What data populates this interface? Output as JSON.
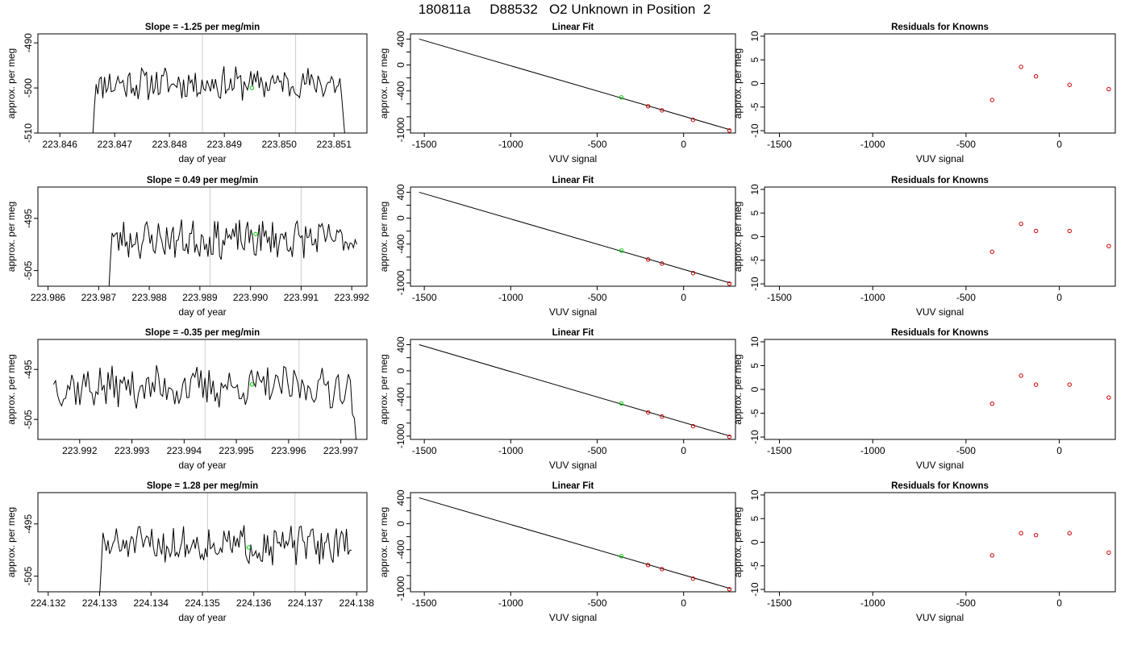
{
  "figure": {
    "title": "180811a     D88532   O2 Unknown in Position  2"
  },
  "colors": {
    "trace": "#000000",
    "marker_known": "#cc0000",
    "marker_unknown": "#00cc00",
    "vline": "#cccccc",
    "frame": "#000000"
  },
  "chart_data": [
    {
      "type": "line",
      "title": "Slope =  -1.25  per meg/min",
      "xlabel": "day of year",
      "ylabel": "approx. per meg",
      "xlim": [
        223.8456,
        223.8516
      ],
      "ylim": [
        -510,
        -488
      ],
      "xticks": [
        "223.846",
        "223.847",
        "223.848",
        "223.849",
        "223.850",
        "223.851"
      ],
      "xtick_values": [
        223.846,
        223.847,
        223.848,
        223.849,
        223.85,
        223.851
      ],
      "yticks": [
        "-490",
        "-500",
        "-510"
      ],
      "ytick_values": [
        -490,
        -500,
        -510
      ],
      "vlines": [
        223.8486,
        223.8503
      ],
      "start_x": 223.8466,
      "end_x": 223.8512,
      "start_y": -511,
      "end_y": -511,
      "mean_y": -499,
      "amplitude": 2.0,
      "drop": 15,
      "marker": {
        "x": 223.8495,
        "y": -500
      },
      "seed": 11
    },
    {
      "type": "scatter",
      "title": "Linear Fit",
      "xlabel": "VUV signal",
      "ylabel": "approx. per meg",
      "xlim": [
        -1580,
        300
      ],
      "ylim": [
        -1050,
        480
      ],
      "xticks": [
        "-1500",
        "-1000",
        "-500",
        "0"
      ],
      "xtick_values": [
        -1500,
        -1000,
        -500,
        0
      ],
      "yticks": [
        "400",
        "0",
        "-400",
        "-1000"
      ],
      "ytick_values": [
        400,
        0,
        -400,
        -1000
      ],
      "yminor": [
        200,
        -200,
        -600,
        -800
      ],
      "fit_line": {
        "x": [
          -1530,
          270
        ],
        "y": [
          400,
          -1000
        ]
      },
      "unknown_points": [
        {
          "x": -360,
          "y": -500
        }
      ],
      "known_points": [
        {
          "x": -205,
          "y": -637
        },
        {
          "x": -125,
          "y": -700
        },
        {
          "x": 55,
          "y": -848
        },
        {
          "x": 265,
          "y": -1010
        }
      ]
    },
    {
      "type": "scatter",
      "title": "Residuals for Knowns",
      "xlabel": "VUV signal",
      "ylabel": "approx. per meg",
      "xlim": [
        -1580,
        300
      ],
      "ylim": [
        -10.5,
        10.5
      ],
      "xticks": [
        "-1500",
        "-1000",
        "-500",
        "0"
      ],
      "xtick_values": [
        -1500,
        -1000,
        -500,
        0
      ],
      "yticks": [
        "10",
        "5",
        "0",
        "-5",
        "-10"
      ],
      "ytick_values": [
        10,
        5,
        0,
        -5,
        -10
      ],
      "points": [
        {
          "x": -360,
          "y": -3.5
        },
        {
          "x": -205,
          "y": 3.5
        },
        {
          "x": -125,
          "y": 1.5
        },
        {
          "x": 55,
          "y": -0.3
        },
        {
          "x": 265,
          "y": -1.2
        }
      ]
    },
    {
      "type": "line",
      "title": "Slope =  0.49  per meg/min",
      "xlabel": "day of year",
      "ylabel": "approx. per meg",
      "xlim": [
        223.9858,
        223.9923
      ],
      "ylim": [
        -508,
        -489
      ],
      "xticks": [
        "223.986",
        "223.987",
        "223.988",
        "223.989",
        "223.990",
        "223.991",
        "223.992"
      ],
      "xtick_values": [
        223.986,
        223.987,
        223.988,
        223.989,
        223.99,
        223.991,
        223.992
      ],
      "yticks": [
        "-495",
        "-505"
      ],
      "ytick_values": [
        -495,
        -505
      ],
      "vlines": [
        223.9892,
        223.991
      ],
      "start_x": 223.9872,
      "end_x": 223.9921,
      "start_y": -509,
      "end_y": -500,
      "mean_y": -499,
      "amplitude": 2.0,
      "drop": 8,
      "marker": {
        "x": 223.9901,
        "y": -498
      },
      "seed": 23
    },
    {
      "type": "scatter",
      "title": "Linear Fit",
      "xlabel": "VUV signal",
      "ylabel": "approx. per meg",
      "xlim": [
        -1580,
        300
      ],
      "ylim": [
        -1050,
        480
      ],
      "xticks": [
        "-1500",
        "-1000",
        "-500",
        "0"
      ],
      "xtick_values": [
        -1500,
        -1000,
        -500,
        0
      ],
      "yticks": [
        "400",
        "0",
        "-400",
        "-1000"
      ],
      "ytick_values": [
        400,
        0,
        -400,
        -1000
      ],
      "yminor": [
        200,
        -200,
        -600,
        -800
      ],
      "fit_line": {
        "x": [
          -1530,
          270
        ],
        "y": [
          400,
          -1000
        ]
      },
      "unknown_points": [
        {
          "x": -360,
          "y": -500
        }
      ],
      "known_points": [
        {
          "x": -205,
          "y": -637
        },
        {
          "x": -125,
          "y": -700
        },
        {
          "x": 55,
          "y": -848
        },
        {
          "x": 265,
          "y": -1010
        }
      ]
    },
    {
      "type": "scatter",
      "title": "Residuals for Knowns",
      "xlabel": "VUV signal",
      "ylabel": "approx. per meg",
      "xlim": [
        -1580,
        300
      ],
      "ylim": [
        -10.5,
        10.5
      ],
      "xticks": [
        "-1500",
        "-1000",
        "-500",
        "0"
      ],
      "xtick_values": [
        -1500,
        -1000,
        -500,
        0
      ],
      "yticks": [
        "10",
        "5",
        "0",
        "-5",
        "-10"
      ],
      "ytick_values": [
        10,
        5,
        0,
        -5,
        -10
      ],
      "points": [
        {
          "x": -360,
          "y": -3.2
        },
        {
          "x": -205,
          "y": 2.7
        },
        {
          "x": -125,
          "y": 1.2
        },
        {
          "x": 55,
          "y": 1.2
        },
        {
          "x": 265,
          "y": -2.0
        }
      ]
    },
    {
      "type": "line",
      "title": "Slope =  -0.35  per meg/min",
      "xlabel": "day of year",
      "ylabel": "approx. per meg",
      "xlim": [
        223.9912,
        223.9975
      ],
      "ylim": [
        -509,
        -489
      ],
      "xticks": [
        "223.992",
        "223.993",
        "223.994",
        "223.995",
        "223.996",
        "223.997"
      ],
      "xtick_values": [
        223.992,
        223.993,
        223.994,
        223.995,
        223.996,
        223.997
      ],
      "yticks": [
        "-495",
        "-505"
      ],
      "ytick_values": [
        -495,
        -505
      ],
      "vlines": [
        223.9944,
        223.9962
      ],
      "start_x": 223.9915,
      "end_x": 223.9973,
      "start_y": -498,
      "end_y": -510,
      "mean_y": -498.5,
      "amplitude": 2.3,
      "drop": 10,
      "marker": {
        "x": 223.9953,
        "y": -498
      },
      "seed": 37
    },
    {
      "type": "scatter",
      "title": "Linear Fit",
      "xlabel": "VUV signal",
      "ylabel": "approx. per meg",
      "xlim": [
        -1580,
        300
      ],
      "ylim": [
        -1050,
        480
      ],
      "xticks": [
        "-1500",
        "-1000",
        "-500",
        "0"
      ],
      "xtick_values": [
        -1500,
        -1000,
        -500,
        0
      ],
      "yticks": [
        "400",
        "0",
        "-400",
        "-1000"
      ],
      "ytick_values": [
        400,
        0,
        -400,
        -1000
      ],
      "yminor": [
        200,
        -200,
        -600,
        -800
      ],
      "fit_line": {
        "x": [
          -1530,
          270
        ],
        "y": [
          400,
          -1000
        ]
      },
      "unknown_points": [
        {
          "x": -360,
          "y": -500
        }
      ],
      "known_points": [
        {
          "x": -205,
          "y": -637
        },
        {
          "x": -125,
          "y": -700
        },
        {
          "x": 55,
          "y": -848
        },
        {
          "x": 265,
          "y": -1010
        }
      ]
    },
    {
      "type": "scatter",
      "title": "Residuals for Knowns",
      "xlabel": "VUV signal",
      "ylabel": "approx. per meg",
      "xlim": [
        -1580,
        300
      ],
      "ylim": [
        -10.5,
        10.5
      ],
      "xticks": [
        "-1500",
        "-1000",
        "-500",
        "0"
      ],
      "xtick_values": [
        -1500,
        -1000,
        -500,
        0
      ],
      "yticks": [
        "10",
        "5",
        "0",
        "-5",
        "-10"
      ],
      "ytick_values": [
        10,
        5,
        0,
        -5,
        -10
      ],
      "points": [
        {
          "x": -360,
          "y": -3.0
        },
        {
          "x": -205,
          "y": 2.9
        },
        {
          "x": -125,
          "y": 1.0
        },
        {
          "x": 55,
          "y": 1.0
        },
        {
          "x": 265,
          "y": -1.7
        }
      ]
    },
    {
      "type": "line",
      "title": "Slope =  1.28  per meg/min",
      "xlabel": "day of year",
      "ylabel": "approx. per meg",
      "xlim": [
        224.1318,
        224.1382
      ],
      "ylim": [
        -508,
        -489
      ],
      "xticks": [
        "224.132",
        "224.133",
        "224.134",
        "224.135",
        "224.136",
        "224.137",
        "224.138"
      ],
      "xtick_values": [
        224.132,
        224.133,
        224.134,
        224.135,
        224.136,
        224.137,
        224.138
      ],
      "yticks": [
        "-495",
        "-505"
      ],
      "ytick_values": [
        -495,
        -505
      ],
      "vlines": [
        224.1351,
        224.1368
      ],
      "start_x": 224.133,
      "end_x": 224.1379,
      "start_y": -509,
      "end_y": -500,
      "mean_y": -499,
      "amplitude": 2.0,
      "drop": 8,
      "marker": {
        "x": 224.1359,
        "y": -499.5
      },
      "seed": 51
    },
    {
      "type": "scatter",
      "title": "Linear Fit",
      "xlabel": "VUV signal",
      "ylabel": "approx. per meg",
      "xlim": [
        -1580,
        300
      ],
      "ylim": [
        -1050,
        480
      ],
      "xticks": [
        "-1500",
        "-1000",
        "-500",
        "0"
      ],
      "xtick_values": [
        -1500,
        -1000,
        -500,
        0
      ],
      "yticks": [
        "400",
        "0",
        "-400",
        "-1000"
      ],
      "ytick_values": [
        400,
        0,
        -400,
        -1000
      ],
      "yminor": [
        200,
        -200,
        -600,
        -800
      ],
      "fit_line": {
        "x": [
          -1530,
          270
        ],
        "y": [
          400,
          -1000
        ]
      },
      "unknown_points": [
        {
          "x": -360,
          "y": -500
        }
      ],
      "known_points": [
        {
          "x": -205,
          "y": -637
        },
        {
          "x": -125,
          "y": -700
        },
        {
          "x": 55,
          "y": -848
        },
        {
          "x": 265,
          "y": -1010
        }
      ]
    },
    {
      "type": "scatter",
      "title": "Residuals for Knowns",
      "xlabel": "VUV signal",
      "ylabel": "approx. per meg",
      "xlim": [
        -1580,
        300
      ],
      "ylim": [
        -10.5,
        10.5
      ],
      "xticks": [
        "-1500",
        "-1000",
        "-500",
        "0"
      ],
      "xtick_values": [
        -1500,
        -1000,
        -500,
        0
      ],
      "yticks": [
        "10",
        "5",
        "0",
        "-5",
        "-10"
      ],
      "ytick_values": [
        10,
        5,
        0,
        -5,
        -10
      ],
      "points": [
        {
          "x": -360,
          "y": -2.8
        },
        {
          "x": -205,
          "y": 1.9
        },
        {
          "x": -125,
          "y": 1.5
        },
        {
          "x": 55,
          "y": 1.9
        },
        {
          "x": 265,
          "y": -2.2
        }
      ]
    }
  ]
}
